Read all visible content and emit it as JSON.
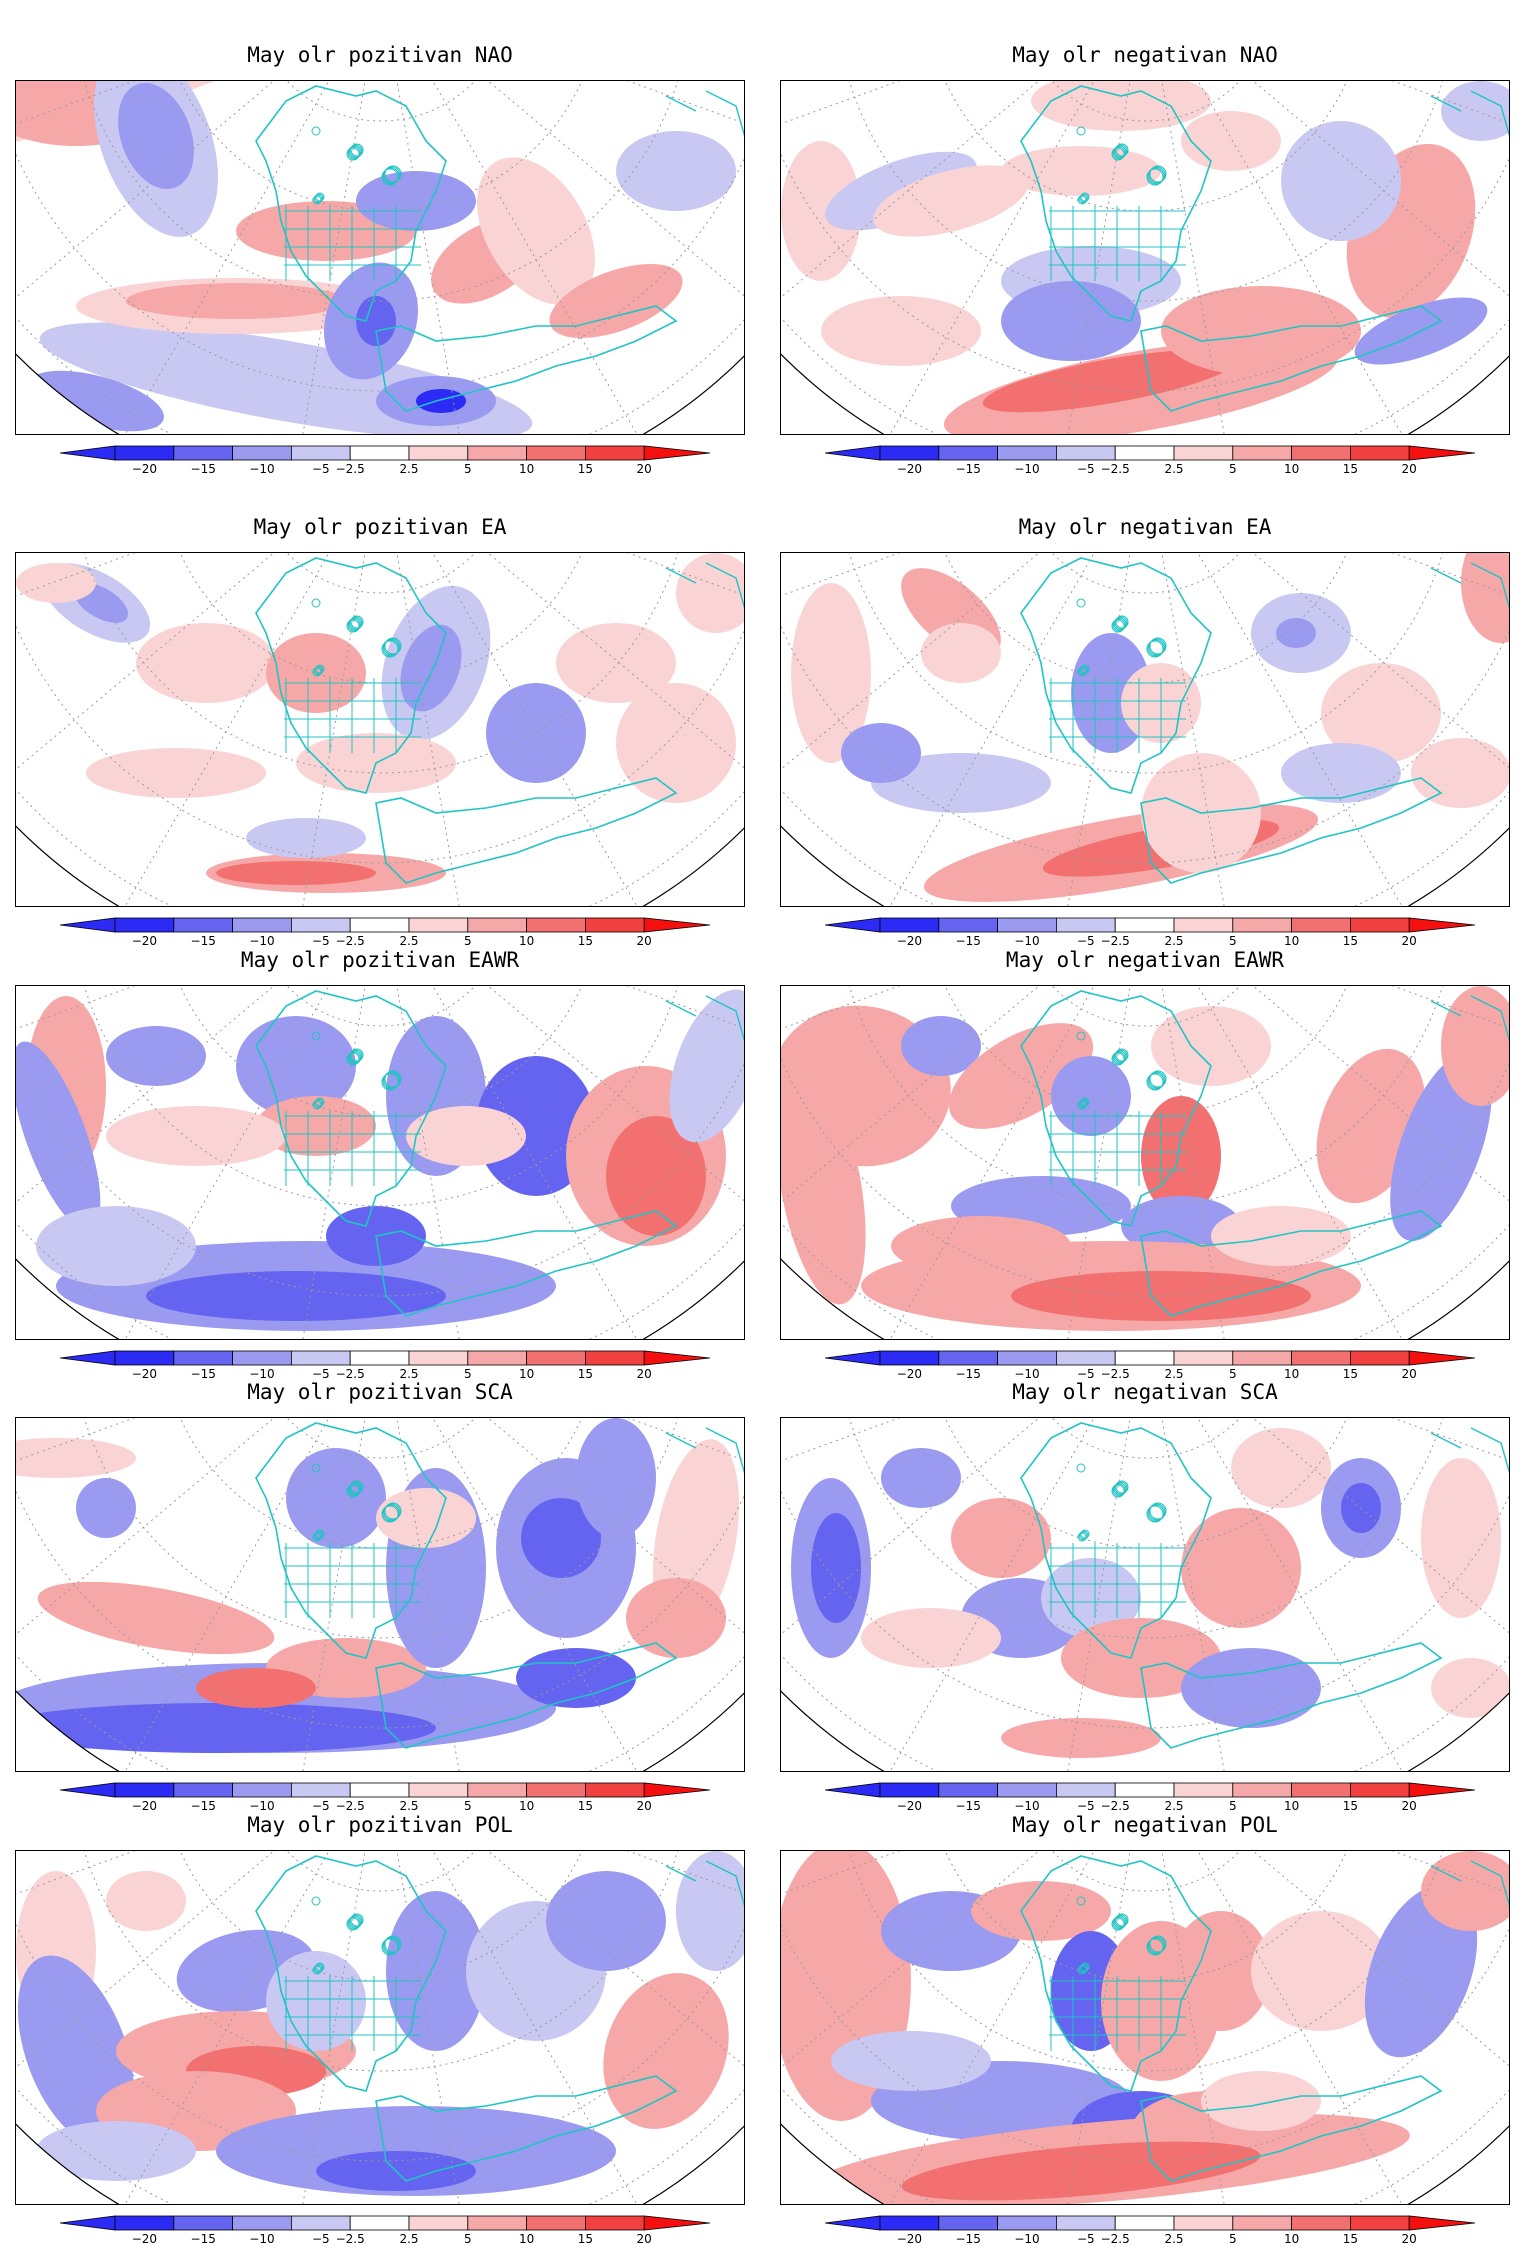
{
  "colors": {
    "neg_20": "#2b2bf5",
    "neg_15": "#6464f0",
    "neg_10": "#9a9af0",
    "neg_5": "#c8c8f3",
    "neutral": "#ffffff",
    "pos_5": "#fad4d4",
    "pos_10": "#f6a8a8",
    "pos_15": "#f27070",
    "pos_20": "#f04040",
    "pos_max": "#f51010",
    "coast": "#20c4c4",
    "grid": "#9a9a9a"
  },
  "colorbar": {
    "ticks": [
      "−20",
      "−15",
      "−10",
      "−5",
      "−2.5",
      "2.5",
      "5",
      "10",
      "15",
      "20"
    ]
  },
  "panels": [
    {
      "title": "May olr pozitivan NAO"
    },
    {
      "title": "May olr negativan NAO"
    },
    {
      "title": "May olr pozitivan EA"
    },
    {
      "title": "May olr negativan EA"
    },
    {
      "title": "May olr pozitivan EAWR"
    },
    {
      "title": "May olr negativan EAWR"
    },
    {
      "title": "May olr pozitivan SCA"
    },
    {
      "title": "May olr negativan SCA"
    },
    {
      "title": "May olr pozitivan POL"
    },
    {
      "title": "May olr negativan POL"
    }
  ]
}
